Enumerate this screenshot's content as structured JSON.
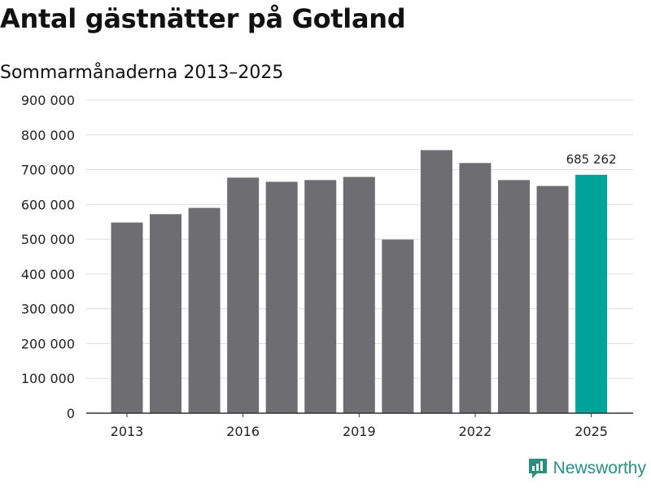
{
  "title": "Antal gästnätter på Gotland",
  "subtitle": "Sommarmånaderna 2013–2025",
  "brand": "Newsworthy",
  "colors": {
    "bar": "#6e6d72",
    "highlight": "#00a39a",
    "grid": "#dedede",
    "axis": "#333333"
  },
  "chart_data": {
    "type": "bar",
    "title": "Antal gästnätter på Gotland",
    "subtitle": "Sommarmånaderna 2013–2025",
    "categories": [
      "2013",
      "2014",
      "2015",
      "2016",
      "2017",
      "2018",
      "2019",
      "2020",
      "2021",
      "2022",
      "2023",
      "2024",
      "2025"
    ],
    "x_tick_labels": [
      "2013",
      "2016",
      "2019",
      "2022",
      "2025"
    ],
    "values": [
      548000,
      572000,
      590000,
      677000,
      665000,
      670000,
      679000,
      499000,
      756000,
      719000,
      670000,
      653000,
      685262
    ],
    "highlight": {
      "category": "2025",
      "label": "685 262"
    },
    "y_ticks": [
      0,
      100000,
      200000,
      300000,
      400000,
      500000,
      600000,
      700000,
      800000,
      900000
    ],
    "y_tick_labels": [
      "0",
      "100 000",
      "200 000",
      "300 000",
      "400 000",
      "500 000",
      "600 000",
      "700 000",
      "800 000",
      "900 000"
    ],
    "ylim": [
      0,
      900000
    ],
    "xlabel": "",
    "ylabel": "",
    "grid": true,
    "legend": "none"
  }
}
